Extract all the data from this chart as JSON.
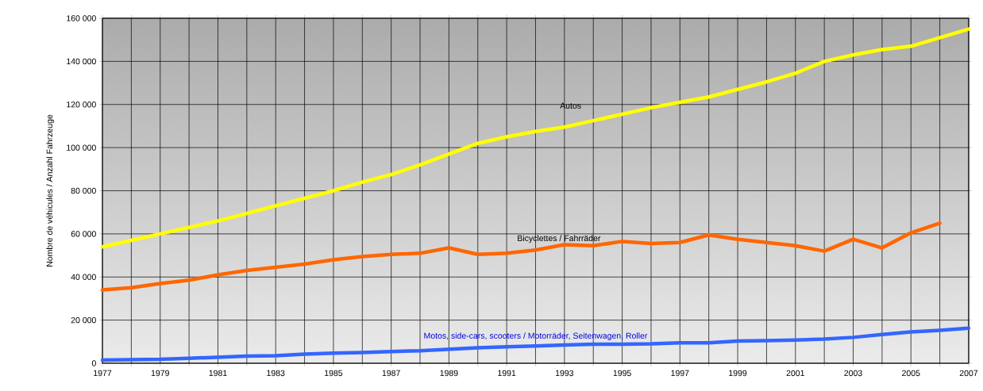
{
  "chart_data": {
    "type": "line",
    "ylabel": "Nombre de véhicules / Anzahl Fahrzeuge",
    "x": [
      1977,
      1978,
      1979,
      1980,
      1981,
      1982,
      1983,
      1984,
      1985,
      1986,
      1987,
      1988,
      1989,
      1990,
      1991,
      1992,
      1993,
      1994,
      1995,
      1996,
      1997,
      1998,
      1999,
      2000,
      2001,
      2002,
      2003,
      2004,
      2005,
      2006,
      2007
    ],
    "series": [
      {
        "name": "Autos",
        "color": "#ffff00",
        "values": [
          54000,
          57000,
          60000,
          63000,
          66000,
          69500,
          73000,
          76500,
          80000,
          84000,
          87500,
          92000,
          97000,
          102000,
          105000,
          107500,
          109500,
          112500,
          115500,
          118500,
          121000,
          123500,
          127000,
          130500,
          134500,
          140000,
          143000,
          145500,
          147000,
          151000,
          155000
        ]
      },
      {
        "name": "Bicyclettes / Fahrräder",
        "color": "#ff6600",
        "values": [
          34000,
          35000,
          37000,
          38500,
          41000,
          43000,
          44500,
          46000,
          48000,
          49500,
          50500,
          51000,
          53500,
          50500,
          51000,
          52500,
          55000,
          54500,
          56500,
          55500,
          56000,
          59500,
          57500,
          56000,
          54500,
          52000,
          57500,
          53500,
          60500,
          65000,
          null
        ]
      },
      {
        "name": "Motos, side-cars, scooters / Motorräder, Seitenwagen, Roller",
        "color": "#3366ff",
        "values": [
          1500,
          1700,
          1800,
          2300,
          2800,
          3300,
          3500,
          4200,
          4700,
          5000,
          5400,
          5800,
          6500,
          7200,
          7600,
          8000,
          8500,
          8800,
          8800,
          9000,
          9500,
          9500,
          10300,
          10500,
          10800,
          11200,
          12000,
          13300,
          14500,
          15300,
          16300
        ]
      }
    ],
    "xlim": [
      1977,
      2007
    ],
    "xticks": [
      1977,
      {
        "value": 1978,
        "label": null
      },
      1979,
      {
        "value": 1980,
        "label": null
      },
      1981,
      {
        "value": 1982,
        "label": null
      },
      1983,
      {
        "value": 1984,
        "label": null
      },
      1985,
      {
        "value": 1986,
        "label": null
      },
      1987,
      {
        "value": 1988,
        "label": null
      },
      1989,
      {
        "value": 1990,
        "label": null
      },
      1991,
      {
        "value": 1992,
        "label": null
      },
      1993,
      {
        "value": 1994,
        "label": null
      },
      1995,
      {
        "value": 1996,
        "label": null
      },
      1997,
      {
        "value": 1998,
        "label": null
      },
      1999,
      {
        "value": 2000,
        "label": null
      },
      2001,
      {
        "value": 2002,
        "label": null
      },
      2003,
      {
        "value": 2004,
        "label": null
      },
      2005,
      {
        "value": 2006,
        "label": null
      },
      2007
    ],
    "ylim": [
      0,
      160000
    ],
    "yticks": [
      0,
      {
        "value": 20000,
        "label": "20 000"
      },
      {
        "value": 40000,
        "label": "40 000"
      },
      {
        "value": 60000,
        "label": "60 000"
      },
      {
        "value": 80000,
        "label": "80 000"
      },
      {
        "value": 100000,
        "label": "100 000"
      },
      {
        "value": 120000,
        "label": "120 000"
      },
      {
        "value": 140000,
        "label": "140 000"
      },
      {
        "value": 160000,
        "label": "160 000"
      }
    ],
    "grid": true,
    "legend": false,
    "marker": "none",
    "line_style": "solid"
  }
}
